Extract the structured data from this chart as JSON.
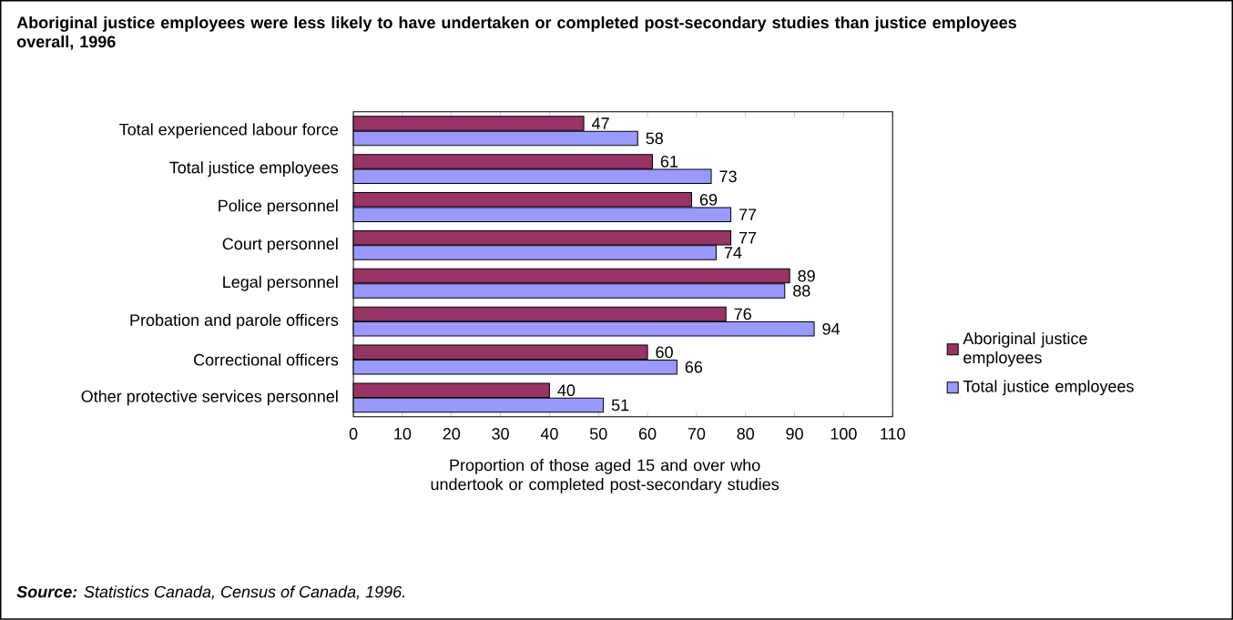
{
  "chart_data": {
    "type": "bar",
    "orientation": "horizontal",
    "title": "Aboriginal justice employees were less likely to have undertaken or completed post-secondary studies than justice employees overall, 1996",
    "xlabel": "Proportion of those aged 15 and over who undertook or completed post-secondary studies",
    "categories": [
      "Total experienced labour force",
      "Total justice employees",
      "Police personnel",
      "Court personnel",
      "Legal personnel",
      "Probation and parole officers",
      "Correctional officers",
      "Other protective services personnel"
    ],
    "series": [
      {
        "name": "Aboriginal justice employees",
        "color": "#993366",
        "values": [
          47,
          61,
          69,
          77,
          89,
          76,
          60,
          40
        ]
      },
      {
        "name": "Total justice employees",
        "color": "#9999ff",
        "values": [
          58,
          73,
          77,
          74,
          88,
          94,
          66,
          51
        ]
      }
    ],
    "xlim": [
      0,
      110
    ],
    "xticks": [
      0,
      10,
      20,
      30,
      40,
      50,
      60,
      70,
      80,
      90,
      100,
      110
    ],
    "data_labels": true,
    "legend": "right",
    "annotations": [
      "**Source:** Statistics Canada, Census of Canada, 1996."
    ]
  }
}
